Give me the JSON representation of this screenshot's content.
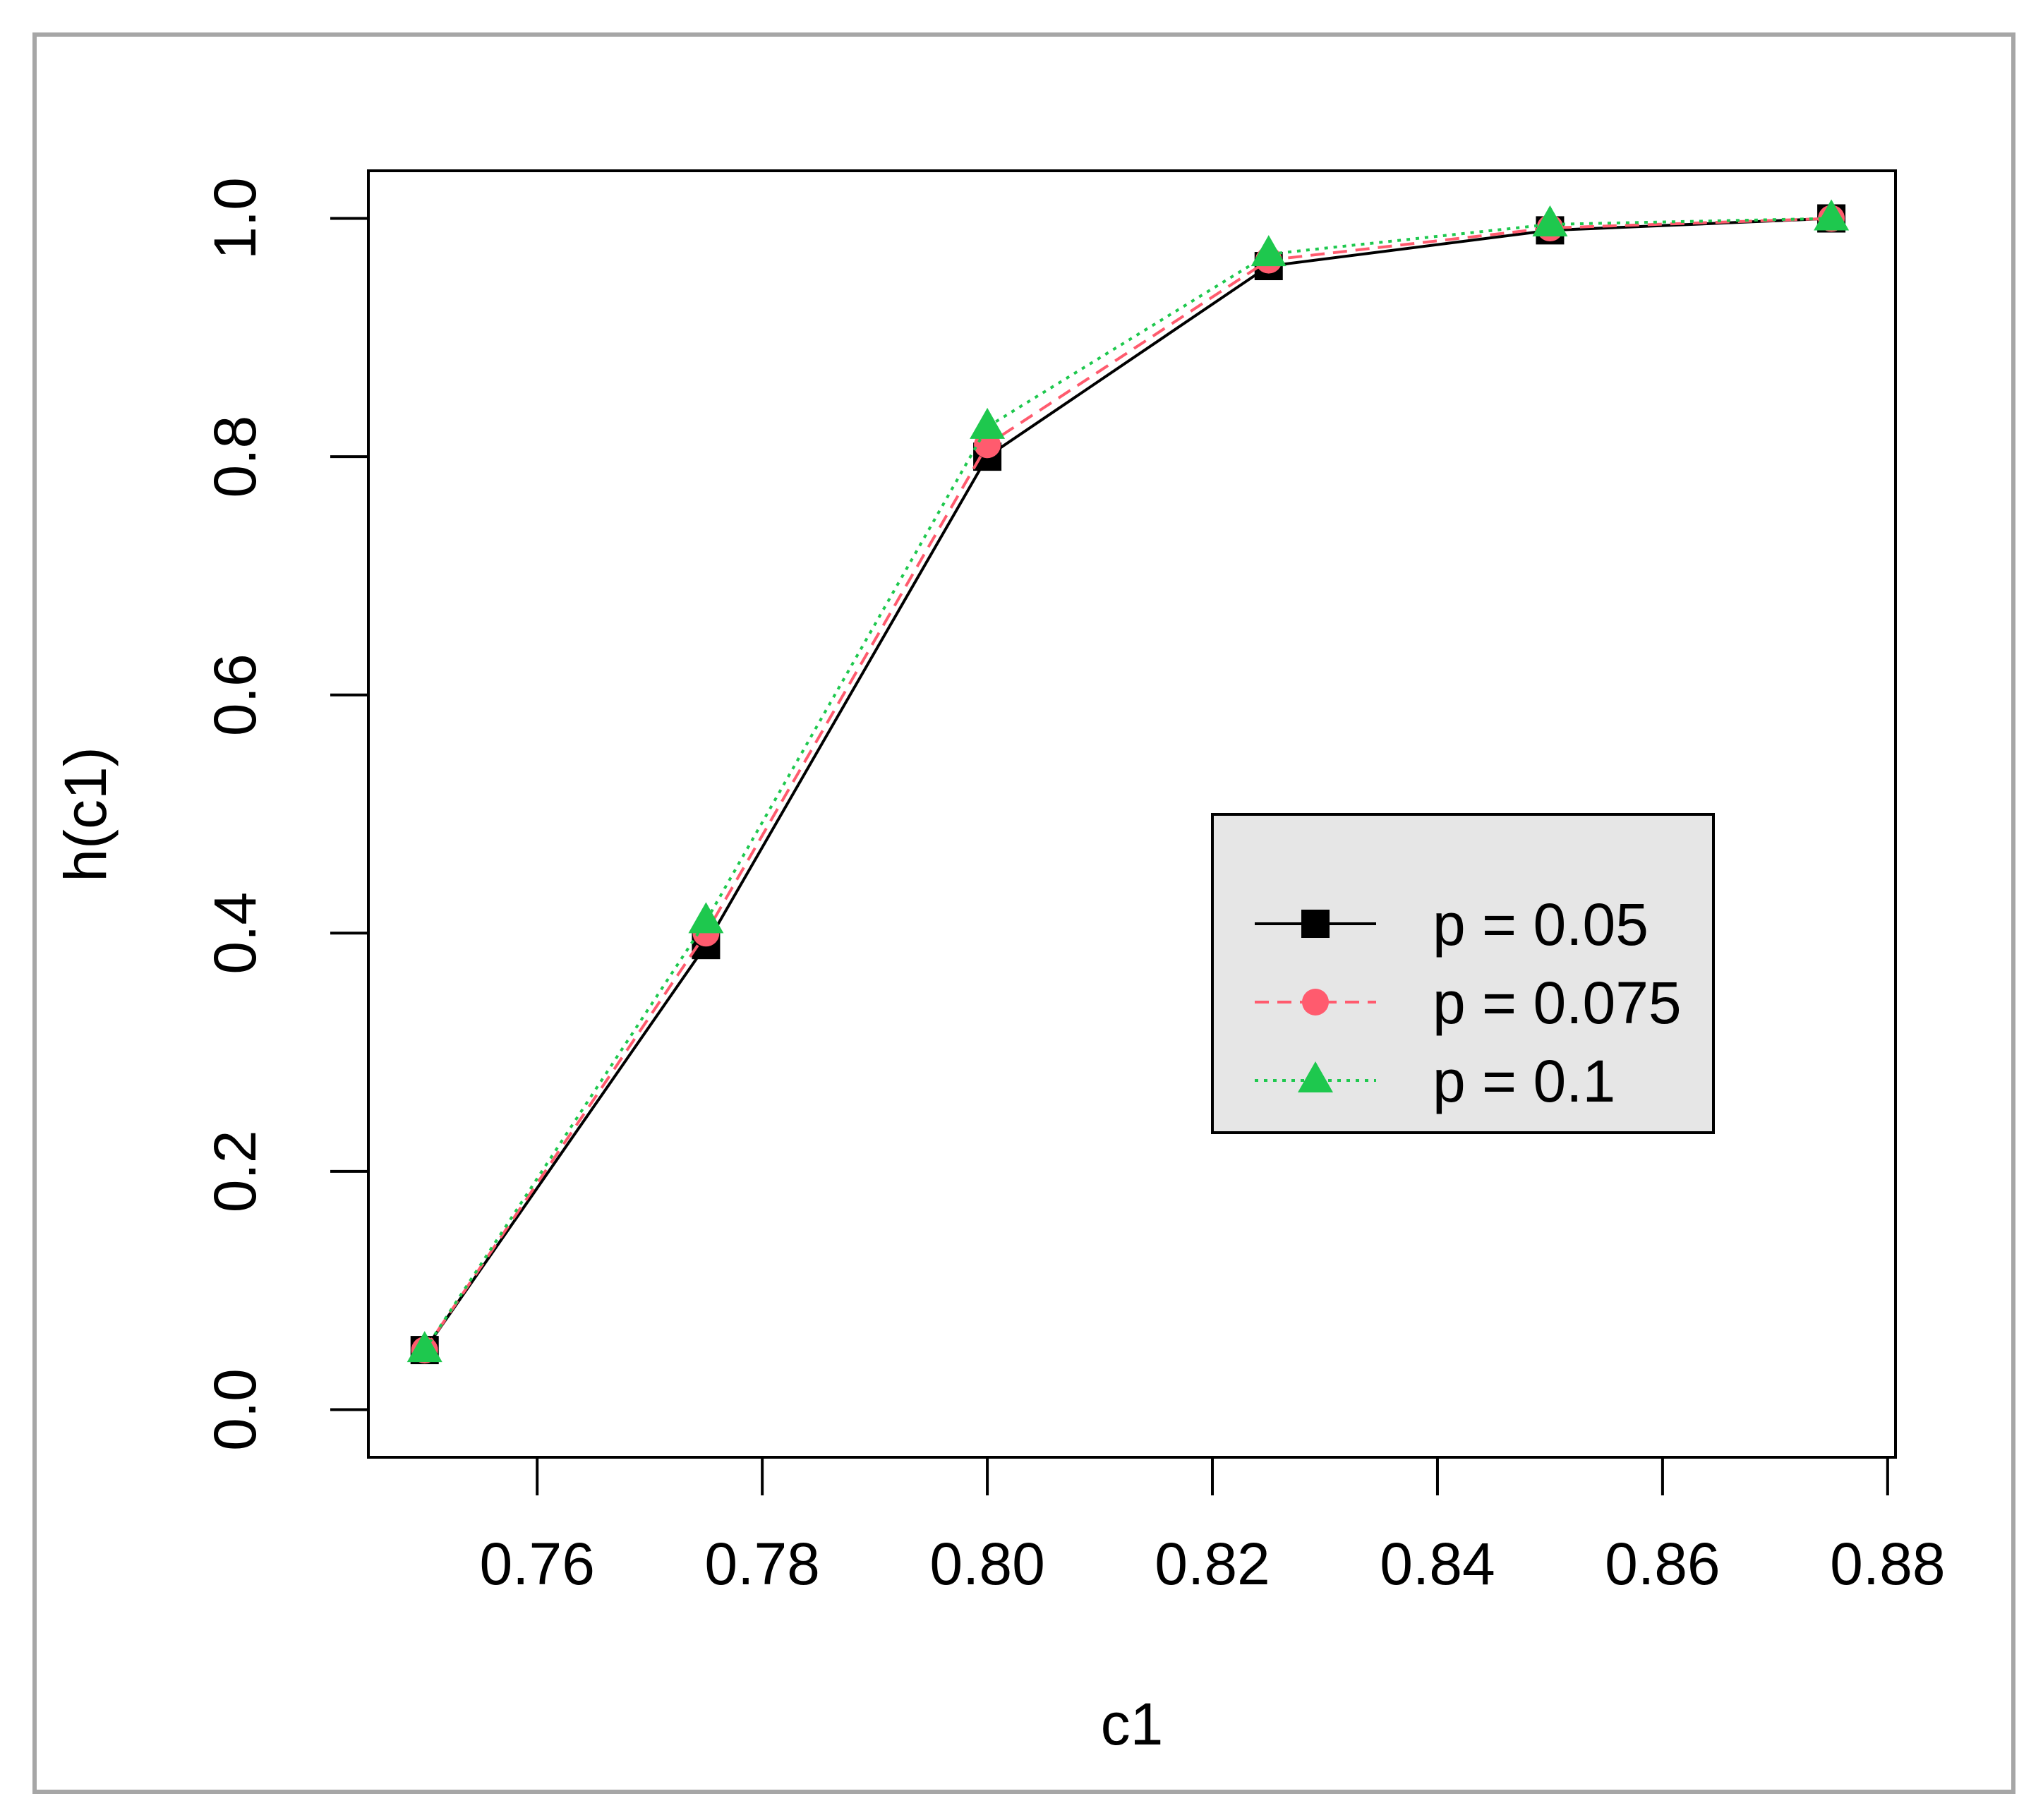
{
  "chart_data": {
    "type": "line",
    "title": "",
    "xlabel": "c1",
    "ylabel": "h(c1)",
    "xlim": [
      0.745,
      0.8807
    ],
    "ylim": [
      -0.04,
      1.04
    ],
    "x_ticks": [
      "0.76",
      "0.78",
      "0.80",
      "0.82",
      "0.84",
      "0.86",
      "0.88"
    ],
    "x_tick_values": [
      0.76,
      0.78,
      0.8,
      0.82,
      0.84,
      0.86,
      0.88
    ],
    "y_ticks": [
      "0.0",
      "0.2",
      "0.4",
      "0.6",
      "0.8",
      "1.0"
    ],
    "y_tick_values": [
      0.0,
      0.2,
      0.4,
      0.6,
      0.8,
      1.0
    ],
    "grid": false,
    "legend_position": "center-right",
    "legend_background": "#e6e6e6",
    "x": [
      0.75,
      0.775,
      0.8,
      0.825,
      0.85,
      0.875
    ],
    "series": [
      {
        "name": "p = 0.05",
        "values": [
          0.05,
          0.39,
          0.8,
          0.96,
          0.99,
          1.0
        ],
        "color": "#000000",
        "marker": "square",
        "dash": "solid"
      },
      {
        "name": "p = 0.075",
        "values": [
          0.05,
          0.4,
          0.81,
          0.965,
          0.992,
          1.0
        ],
        "color": "#ff5b6e",
        "marker": "circle",
        "dash": "dashed"
      },
      {
        "name": "p = 0.1",
        "values": [
          0.05,
          0.41,
          0.825,
          0.97,
          0.995,
          1.0
        ],
        "color": "#1ec84e",
        "marker": "triangle",
        "dash": "dotted"
      }
    ]
  }
}
